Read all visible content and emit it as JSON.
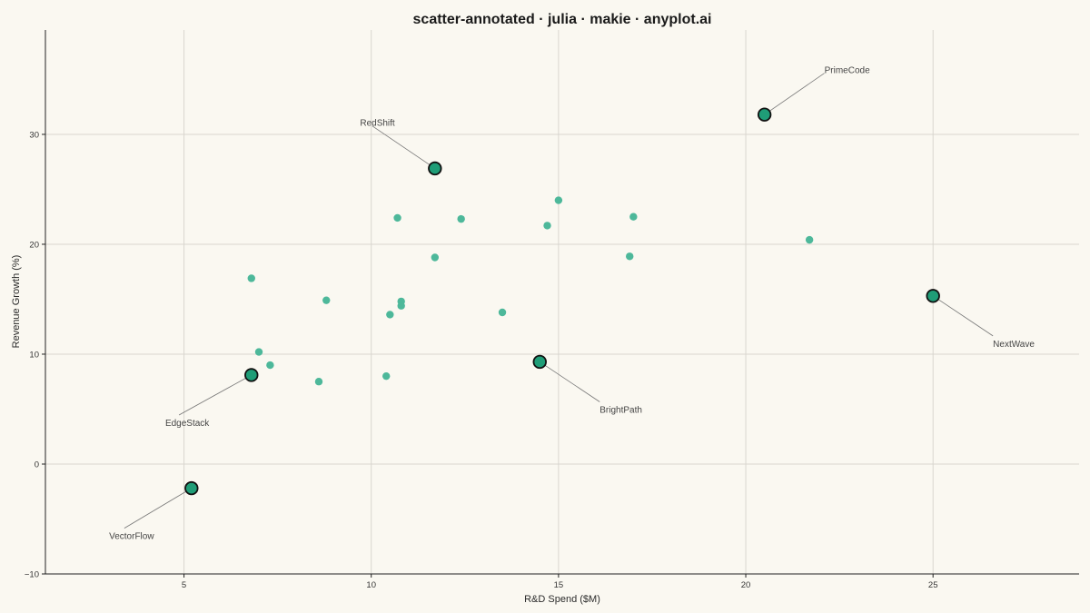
{
  "chart_data": {
    "type": "scatter",
    "title": "scatter-annotated · julia · makie · anyplot.ai",
    "xlabel": "R&D Spend ($M)",
    "ylabel": "Revenue Growth (%)",
    "xlim": [
      1.3,
      28.9
    ],
    "ylim": [
      -10,
      39.5
    ],
    "xticks": [
      5,
      10,
      15,
      20,
      25
    ],
    "yticks": [
      -10,
      0,
      10,
      20,
      30
    ],
    "grid": true,
    "colors": {
      "point": "#4DB89A",
      "highlight_fill": "#1F9D77",
      "highlight_stroke": "#111111",
      "leader": "#777777",
      "background": "#FAF8F1"
    },
    "points": [
      {
        "x": 6.8,
        "y": 16.9
      },
      {
        "x": 7.0,
        "y": 10.2
      },
      {
        "x": 7.3,
        "y": 9.0
      },
      {
        "x": 8.6,
        "y": 7.5
      },
      {
        "x": 8.8,
        "y": 14.9
      },
      {
        "x": 10.4,
        "y": 8.0
      },
      {
        "x": 10.5,
        "y": 13.6
      },
      {
        "x": 10.7,
        "y": 22.4
      },
      {
        "x": 10.8,
        "y": 14.8
      },
      {
        "x": 10.8,
        "y": 14.4
      },
      {
        "x": 11.7,
        "y": 18.8
      },
      {
        "x": 12.4,
        "y": 22.3
      },
      {
        "x": 13.5,
        "y": 13.8
      },
      {
        "x": 14.7,
        "y": 21.7
      },
      {
        "x": 15.0,
        "y": 24.0
      },
      {
        "x": 16.9,
        "y": 18.9
      },
      {
        "x": 17.0,
        "y": 22.5
      },
      {
        "x": 21.7,
        "y": 20.4
      }
    ],
    "annotated": [
      {
        "label": "PrimeCode",
        "x": 20.5,
        "y": 31.8,
        "lx": 22.1,
        "ly": 35.9
      },
      {
        "label": "RedShift",
        "x": 11.7,
        "y": 26.9,
        "lx": 9.7,
        "ly": 31.1
      },
      {
        "label": "NextWave",
        "x": 25.0,
        "y": 15.3,
        "lx": 26.6,
        "ly": 11.0
      },
      {
        "label": "BrightPath",
        "x": 14.5,
        "y": 9.3,
        "lx": 16.1,
        "ly": 5.0
      },
      {
        "label": "EdgeStack",
        "x": 6.8,
        "y": 8.1,
        "lx": 4.5,
        "ly": 3.8
      },
      {
        "label": "VectorFlow",
        "x": 5.2,
        "y": -2.2,
        "lx": 3.0,
        "ly": -6.5
      }
    ]
  }
}
